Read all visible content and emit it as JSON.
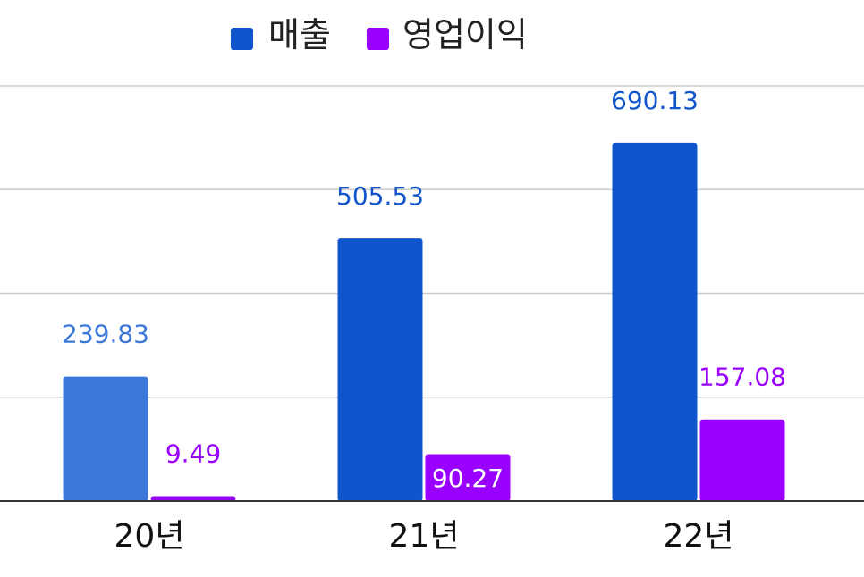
{
  "chart_data": {
    "type": "bar",
    "categories": [
      "20년",
      "21년",
      "22년"
    ],
    "series": [
      {
        "name": "매출",
        "values": [
          239.83,
          505.53,
          690.13
        ],
        "labels": [
          "239.83",
          "505.53",
          "690.13"
        ],
        "color": "#1155cc"
      },
      {
        "name": "영업이익",
        "values": [
          9.49,
          90.27,
          157.08
        ],
        "labels": [
          "9.49",
          "90.27",
          "157.08"
        ],
        "color": "#9900ff"
      }
    ],
    "first_bar_color": "#3c78d8",
    "ylim": [
      0,
      800
    ],
    "grid": true,
    "legend": "top-center",
    "title": "",
    "xlabel": "",
    "ylabel": ""
  }
}
